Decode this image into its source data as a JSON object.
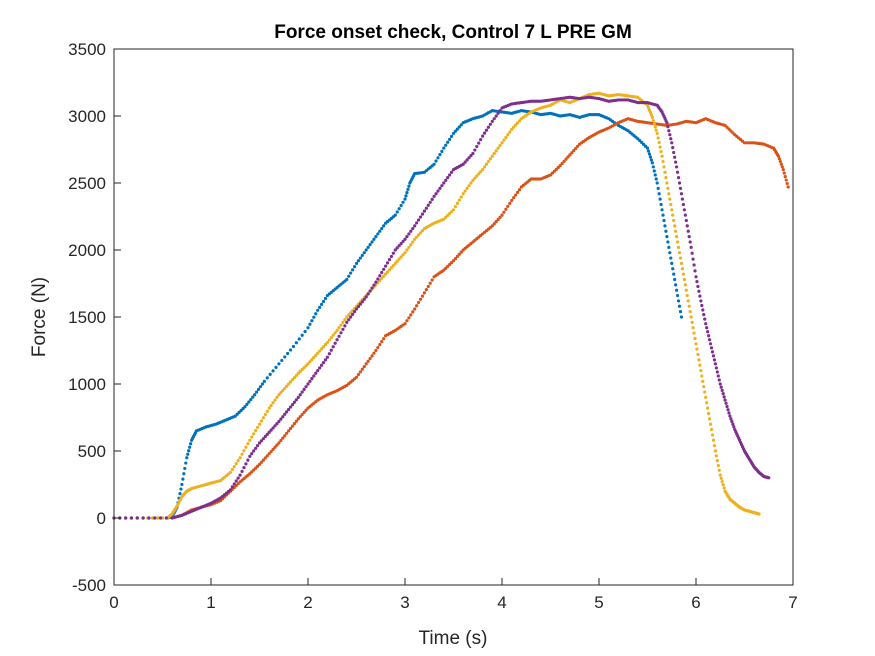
{
  "chart_data": {
    "type": "scatter",
    "title": "Force onset check, Control 7 L PRE GM",
    "xlabel": "Time (s)",
    "ylabel": "Force (N)",
    "xlim": [
      0,
      7
    ],
    "ylim": [
      -500,
      3500
    ],
    "xticks": [
      0,
      1,
      2,
      3,
      4,
      5,
      6,
      7
    ],
    "yticks": [
      -500,
      0,
      500,
      1000,
      1500,
      2000,
      2500,
      3000,
      3500
    ],
    "grid": false,
    "legend": false,
    "series": [
      {
        "color": "#0072BD",
        "points": [
          [
            0,
            0
          ],
          [
            0.3,
            0
          ],
          [
            0.55,
            0
          ],
          [
            0.6,
            10
          ],
          [
            0.65,
            80
          ],
          [
            0.7,
            250
          ],
          [
            0.75,
            450
          ],
          [
            0.8,
            580
          ],
          [
            0.85,
            650
          ],
          [
            0.95,
            680
          ],
          [
            1.05,
            700
          ],
          [
            1.15,
            730
          ],
          [
            1.25,
            760
          ],
          [
            1.35,
            830
          ],
          [
            1.45,
            920
          ],
          [
            1.55,
            1020
          ],
          [
            1.7,
            1150
          ],
          [
            1.85,
            1280
          ],
          [
            2.0,
            1420
          ],
          [
            2.1,
            1550
          ],
          [
            2.2,
            1660
          ],
          [
            2.3,
            1720
          ],
          [
            2.4,
            1780
          ],
          [
            2.5,
            1900
          ],
          [
            2.6,
            2000
          ],
          [
            2.7,
            2100
          ],
          [
            2.8,
            2200
          ],
          [
            2.9,
            2260
          ],
          [
            3.0,
            2380
          ],
          [
            3.05,
            2500
          ],
          [
            3.1,
            2570
          ],
          [
            3.2,
            2580
          ],
          [
            3.3,
            2640
          ],
          [
            3.4,
            2760
          ],
          [
            3.5,
            2870
          ],
          [
            3.6,
            2950
          ],
          [
            3.7,
            2980
          ],
          [
            3.8,
            3000
          ],
          [
            3.9,
            3040
          ],
          [
            4.0,
            3030
          ],
          [
            4.1,
            3020
          ],
          [
            4.2,
            3040
          ],
          [
            4.3,
            3030
          ],
          [
            4.4,
            3010
          ],
          [
            4.5,
            3020
          ],
          [
            4.6,
            3000
          ],
          [
            4.7,
            3010
          ],
          [
            4.8,
            2990
          ],
          [
            4.9,
            3010
          ],
          [
            5.0,
            3010
          ],
          [
            5.1,
            2980
          ],
          [
            5.2,
            2930
          ],
          [
            5.3,
            2890
          ],
          [
            5.4,
            2830
          ],
          [
            5.5,
            2760
          ],
          [
            5.55,
            2650
          ],
          [
            5.6,
            2500
          ],
          [
            5.65,
            2300
          ],
          [
            5.7,
            2100
          ],
          [
            5.75,
            1900
          ],
          [
            5.8,
            1700
          ],
          [
            5.85,
            1500
          ]
        ]
      },
      {
        "color": "#D95319",
        "points": [
          [
            0,
            0
          ],
          [
            0.3,
            0
          ],
          [
            0.6,
            0
          ],
          [
            0.7,
            20
          ],
          [
            0.8,
            60
          ],
          [
            0.9,
            80
          ],
          [
            1.0,
            100
          ],
          [
            1.1,
            130
          ],
          [
            1.2,
            200
          ],
          [
            1.3,
            270
          ],
          [
            1.4,
            330
          ],
          [
            1.5,
            400
          ],
          [
            1.6,
            480
          ],
          [
            1.7,
            560
          ],
          [
            1.8,
            650
          ],
          [
            1.9,
            740
          ],
          [
            2.0,
            820
          ],
          [
            2.1,
            880
          ],
          [
            2.2,
            920
          ],
          [
            2.3,
            950
          ],
          [
            2.4,
            990
          ],
          [
            2.5,
            1050
          ],
          [
            2.6,
            1150
          ],
          [
            2.7,
            1250
          ],
          [
            2.8,
            1360
          ],
          [
            2.9,
            1400
          ],
          [
            3.0,
            1450
          ],
          [
            3.1,
            1560
          ],
          [
            3.2,
            1680
          ],
          [
            3.3,
            1800
          ],
          [
            3.4,
            1850
          ],
          [
            3.5,
            1920
          ],
          [
            3.6,
            2000
          ],
          [
            3.7,
            2060
          ],
          [
            3.8,
            2120
          ],
          [
            3.9,
            2180
          ],
          [
            4.0,
            2260
          ],
          [
            4.1,
            2370
          ],
          [
            4.2,
            2470
          ],
          [
            4.3,
            2530
          ],
          [
            4.4,
            2530
          ],
          [
            4.5,
            2560
          ],
          [
            4.6,
            2630
          ],
          [
            4.7,
            2710
          ],
          [
            4.8,
            2790
          ],
          [
            4.9,
            2840
          ],
          [
            5.0,
            2880
          ],
          [
            5.1,
            2910
          ],
          [
            5.2,
            2950
          ],
          [
            5.3,
            2980
          ],
          [
            5.4,
            2960
          ],
          [
            5.5,
            2950
          ],
          [
            5.6,
            2940
          ],
          [
            5.7,
            2930
          ],
          [
            5.8,
            2940
          ],
          [
            5.9,
            2960
          ],
          [
            6.0,
            2950
          ],
          [
            6.1,
            2980
          ],
          [
            6.2,
            2950
          ],
          [
            6.3,
            2930
          ],
          [
            6.4,
            2860
          ],
          [
            6.5,
            2800
          ],
          [
            6.6,
            2800
          ],
          [
            6.7,
            2790
          ],
          [
            6.8,
            2760
          ],
          [
            6.85,
            2700
          ],
          [
            6.9,
            2600
          ],
          [
            6.95,
            2470
          ]
        ]
      },
      {
        "color": "#EDB120",
        "points": [
          [
            0,
            0
          ],
          [
            0.3,
            0
          ],
          [
            0.55,
            0
          ],
          [
            0.6,
            30
          ],
          [
            0.65,
            90
          ],
          [
            0.7,
            160
          ],
          [
            0.75,
            200
          ],
          [
            0.8,
            220
          ],
          [
            0.9,
            240
          ],
          [
            1.0,
            260
          ],
          [
            1.1,
            280
          ],
          [
            1.2,
            340
          ],
          [
            1.3,
            450
          ],
          [
            1.4,
            580
          ],
          [
            1.5,
            700
          ],
          [
            1.6,
            820
          ],
          [
            1.7,
            920
          ],
          [
            1.8,
            1000
          ],
          [
            1.9,
            1080
          ],
          [
            2.0,
            1150
          ],
          [
            2.1,
            1230
          ],
          [
            2.2,
            1310
          ],
          [
            2.3,
            1400
          ],
          [
            2.4,
            1500
          ],
          [
            2.5,
            1580
          ],
          [
            2.6,
            1660
          ],
          [
            2.7,
            1740
          ],
          [
            2.8,
            1820
          ],
          [
            2.9,
            1900
          ],
          [
            3.0,
            1980
          ],
          [
            3.1,
            2080
          ],
          [
            3.2,
            2160
          ],
          [
            3.3,
            2200
          ],
          [
            3.4,
            2230
          ],
          [
            3.5,
            2300
          ],
          [
            3.6,
            2420
          ],
          [
            3.7,
            2520
          ],
          [
            3.8,
            2600
          ],
          [
            3.9,
            2700
          ],
          [
            4.0,
            2800
          ],
          [
            4.1,
            2900
          ],
          [
            4.2,
            2980
          ],
          [
            4.3,
            3030
          ],
          [
            4.4,
            3060
          ],
          [
            4.5,
            3080
          ],
          [
            4.6,
            3120
          ],
          [
            4.7,
            3100
          ],
          [
            4.8,
            3130
          ],
          [
            4.9,
            3160
          ],
          [
            5.0,
            3170
          ],
          [
            5.1,
            3150
          ],
          [
            5.2,
            3160
          ],
          [
            5.3,
            3150
          ],
          [
            5.4,
            3140
          ],
          [
            5.5,
            3080
          ],
          [
            5.55,
            2990
          ],
          [
            5.6,
            2870
          ],
          [
            5.65,
            2700
          ],
          [
            5.7,
            2500
          ],
          [
            5.75,
            2300
          ],
          [
            5.8,
            2100
          ],
          [
            5.85,
            1900
          ],
          [
            5.9,
            1700
          ],
          [
            5.95,
            1500
          ],
          [
            6.0,
            1300
          ],
          [
            6.05,
            1100
          ],
          [
            6.1,
            900
          ],
          [
            6.15,
            700
          ],
          [
            6.2,
            500
          ],
          [
            6.25,
            320
          ],
          [
            6.3,
            200
          ],
          [
            6.35,
            140
          ],
          [
            6.4,
            110
          ],
          [
            6.45,
            80
          ],
          [
            6.5,
            60
          ],
          [
            6.55,
            50
          ],
          [
            6.6,
            40
          ],
          [
            6.65,
            30
          ]
        ]
      },
      {
        "color": "#7E2F8E",
        "points": [
          [
            0,
            0
          ],
          [
            0.3,
            0
          ],
          [
            0.6,
            0
          ],
          [
            0.7,
            20
          ],
          [
            0.8,
            50
          ],
          [
            0.9,
            80
          ],
          [
            1.0,
            110
          ],
          [
            1.1,
            150
          ],
          [
            1.2,
            210
          ],
          [
            1.3,
            320
          ],
          [
            1.4,
            460
          ],
          [
            1.5,
            560
          ],
          [
            1.6,
            640
          ],
          [
            1.7,
            720
          ],
          [
            1.8,
            810
          ],
          [
            1.9,
            900
          ],
          [
            2.0,
            1000
          ],
          [
            2.1,
            1100
          ],
          [
            2.2,
            1200
          ],
          [
            2.3,
            1330
          ],
          [
            2.4,
            1460
          ],
          [
            2.5,
            1560
          ],
          [
            2.6,
            1650
          ],
          [
            2.7,
            1760
          ],
          [
            2.8,
            1880
          ],
          [
            2.9,
            2000
          ],
          [
            3.0,
            2080
          ],
          [
            3.1,
            2180
          ],
          [
            3.2,
            2290
          ],
          [
            3.3,
            2400
          ],
          [
            3.4,
            2500
          ],
          [
            3.5,
            2600
          ],
          [
            3.6,
            2640
          ],
          [
            3.7,
            2720
          ],
          [
            3.8,
            2850
          ],
          [
            3.9,
            2960
          ],
          [
            4.0,
            3060
          ],
          [
            4.1,
            3090
          ],
          [
            4.2,
            3100
          ],
          [
            4.3,
            3110
          ],
          [
            4.4,
            3110
          ],
          [
            4.5,
            3120
          ],
          [
            4.6,
            3130
          ],
          [
            4.7,
            3140
          ],
          [
            4.8,
            3130
          ],
          [
            4.9,
            3140
          ],
          [
            5.0,
            3130
          ],
          [
            5.1,
            3110
          ],
          [
            5.2,
            3120
          ],
          [
            5.3,
            3120
          ],
          [
            5.4,
            3100
          ],
          [
            5.5,
            3100
          ],
          [
            5.6,
            3080
          ],
          [
            5.65,
            3030
          ],
          [
            5.7,
            2950
          ],
          [
            5.75,
            2800
          ],
          [
            5.8,
            2620
          ],
          [
            5.85,
            2420
          ],
          [
            5.9,
            2220
          ],
          [
            5.95,
            2020
          ],
          [
            6.0,
            1800
          ],
          [
            6.05,
            1620
          ],
          [
            6.1,
            1450
          ],
          [
            6.15,
            1300
          ],
          [
            6.2,
            1150
          ],
          [
            6.25,
            1000
          ],
          [
            6.3,
            880
          ],
          [
            6.35,
            760
          ],
          [
            6.4,
            660
          ],
          [
            6.45,
            580
          ],
          [
            6.5,
            500
          ],
          [
            6.55,
            440
          ],
          [
            6.6,
            380
          ],
          [
            6.65,
            340
          ],
          [
            6.7,
            310
          ],
          [
            6.75,
            300
          ]
        ]
      }
    ]
  }
}
